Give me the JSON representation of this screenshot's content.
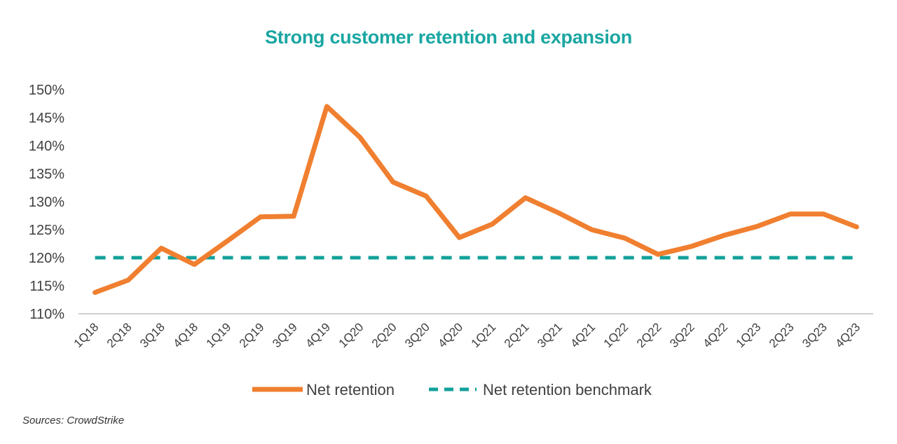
{
  "colors": {
    "title": "#1aa6a2",
    "series_primary": "#f07f30",
    "series_benchmark": "#12a19a",
    "axis": "#bfbfbf",
    "text": "#404040"
  },
  "chart_data": {
    "type": "line",
    "title": "Strong customer retention and expansion",
    "xlabel": "",
    "ylabel": "",
    "ylim": [
      110,
      150
    ],
    "y_ticks": [
      110,
      115,
      120,
      125,
      130,
      135,
      140,
      145,
      150
    ],
    "y_tick_labels": [
      "110%",
      "115%",
      "120%",
      "125%",
      "130%",
      "135%",
      "140%",
      "145%",
      "150%"
    ],
    "grid": false,
    "legend_position": "bottom",
    "categories": [
      "1Q18",
      "2Q18",
      "3Q18",
      "4Q18",
      "1Q19",
      "2Q19",
      "3Q19",
      "4Q19",
      "1Q20",
      "2Q20",
      "3Q20",
      "4Q20",
      "1Q21",
      "2Q21",
      "3Q21",
      "4Q21",
      "1Q22",
      "2Q22",
      "3Q22",
      "4Q22",
      "1Q23",
      "2Q23",
      "3Q23",
      "4Q23"
    ],
    "series": [
      {
        "name": "Net retention",
        "style": "solid",
        "values": [
          113.8,
          116.0,
          121.7,
          118.8,
          123.0,
          127.3,
          127.4,
          147.0,
          141.5,
          133.5,
          131.0,
          123.6,
          126.0,
          130.7,
          128.0,
          125.0,
          123.5,
          120.6,
          122.0,
          124.0,
          125.6,
          127.8,
          127.8,
          125.5
        ]
      },
      {
        "name": "Net retention benchmark",
        "style": "dashed",
        "values": [
          120,
          120,
          120,
          120,
          120,
          120,
          120,
          120,
          120,
          120,
          120,
          120,
          120,
          120,
          120,
          120,
          120,
          120,
          120,
          120,
          120,
          120,
          120,
          120
        ]
      }
    ]
  },
  "footer": {
    "source": "Sources: CrowdStrike"
  }
}
